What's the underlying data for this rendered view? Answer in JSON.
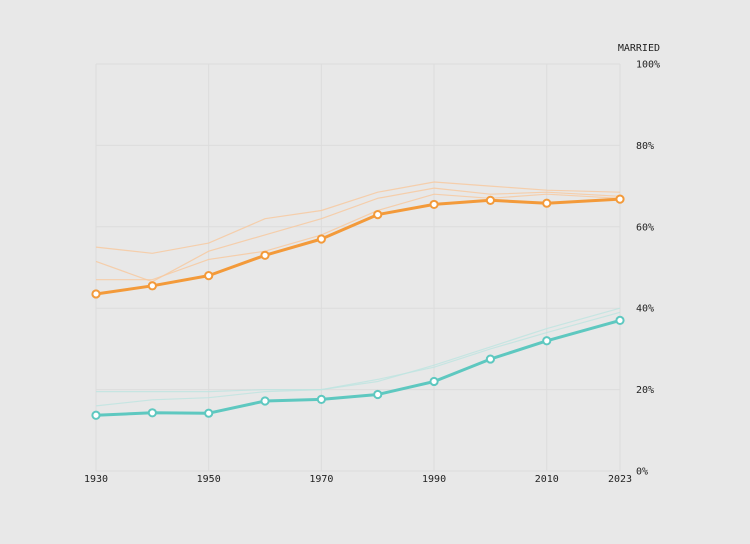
{
  "chart_data": {
    "type": "line",
    "ylabel": "MARRIED",
    "ylim": [
      0,
      100
    ],
    "y_ticks": [
      0,
      20,
      40,
      60,
      80,
      100
    ],
    "y_tick_labels": [
      "0%",
      "20%",
      "40%",
      "60%",
      "80%",
      "100%"
    ],
    "xlim": [
      1930,
      2023
    ],
    "x_ticks": [
      1930,
      1950,
      1970,
      1990,
      2010,
      2023
    ],
    "x_tick_labels": [
      "1930",
      "1950",
      "1970",
      "1990",
      "2010",
      "2023"
    ],
    "grid": true,
    "colors": {
      "orange": "#f39a3a",
      "teal": "#5ec8c0",
      "orange_faint": "#f7c9a0",
      "teal_faint": "#bfe4e0",
      "grid": "#dcdcdc"
    },
    "series": [
      {
        "color": "orange",
        "emphasis": "main",
        "x": [
          1930,
          1940,
          1950,
          1960,
          1970,
          1980,
          1990,
          2000,
          2010,
          2023
        ],
        "values": [
          43.5,
          45.5,
          48.0,
          53.0,
          57.0,
          63.0,
          65.5,
          66.5,
          65.8,
          66.8
        ]
      },
      {
        "color": "teal",
        "emphasis": "main",
        "x": [
          1930,
          1940,
          1950,
          1960,
          1970,
          1980,
          1990,
          2000,
          2010,
          2023
        ],
        "values": [
          13.7,
          14.3,
          14.2,
          17.2,
          17.6,
          18.8,
          22.0,
          27.5,
          32.0,
          37.0
        ]
      },
      {
        "color": "orange",
        "emphasis": "faint",
        "x": [
          1930,
          1940,
          1950,
          1960,
          1970,
          1980,
          1990,
          2000,
          2010,
          2023
        ],
        "values": [
          47,
          47,
          52,
          54,
          58,
          64,
          68,
          67,
          68,
          67
        ]
      },
      {
        "color": "orange",
        "emphasis": "faint",
        "x": [
          1930,
          1940,
          1950,
          1960,
          1970,
          1980,
          1990,
          2000,
          2010,
          2023
        ],
        "values": [
          51.5,
          46.5,
          54,
          58,
          62,
          67,
          69.5,
          68,
          68.5,
          67.5
        ]
      },
      {
        "color": "orange",
        "emphasis": "faint",
        "x": [
          1930,
          1940,
          1950,
          1960,
          1970,
          1980,
          1990,
          2000,
          2010,
          2023
        ],
        "values": [
          55,
          53.5,
          56,
          62,
          64,
          68.5,
          71,
          70,
          69,
          68.5
        ]
      },
      {
        "color": "teal",
        "emphasis": "faint",
        "x": [
          1930,
          1940,
          1950,
          1960,
          1970,
          1980,
          1990,
          2000,
          2010,
          2023
        ],
        "values": [
          16,
          17.5,
          18,
          19.5,
          20,
          22,
          26,
          30.5,
          35,
          40
        ]
      },
      {
        "color": "teal",
        "emphasis": "faint",
        "x": [
          1930,
          1940,
          1950,
          1960,
          1970,
          1980,
          1990,
          2000,
          2010,
          2023
        ],
        "values": [
          19.5,
          19.5,
          19.5,
          20,
          20,
          22.5,
          25.5,
          30,
          34,
          39
        ]
      }
    ]
  }
}
